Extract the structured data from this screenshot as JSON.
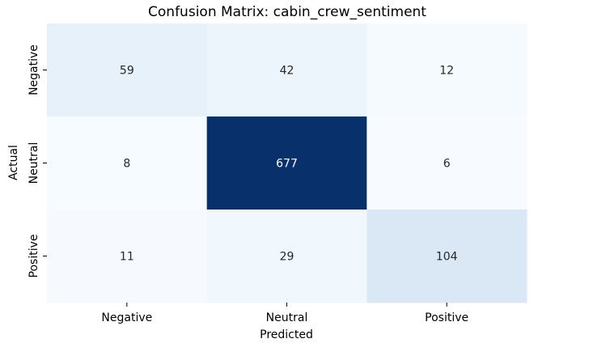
{
  "chart_data": {
    "type": "heatmap",
    "title": "Confusion Matrix: cabin_crew_sentiment",
    "xlabel": "Predicted",
    "ylabel": "Actual",
    "x_categories": [
      "Negative",
      "Neutral",
      "Positive"
    ],
    "y_categories": [
      "Negative",
      "Neutral",
      "Positive"
    ],
    "values": [
      [
        59,
        42,
        12
      ],
      [
        8,
        677,
        6
      ],
      [
        11,
        29,
        104
      ]
    ],
    "colormap": "Blues",
    "color_low": "#f7fbff",
    "color_high": "#08306b",
    "colorbar": false,
    "grid": false
  }
}
